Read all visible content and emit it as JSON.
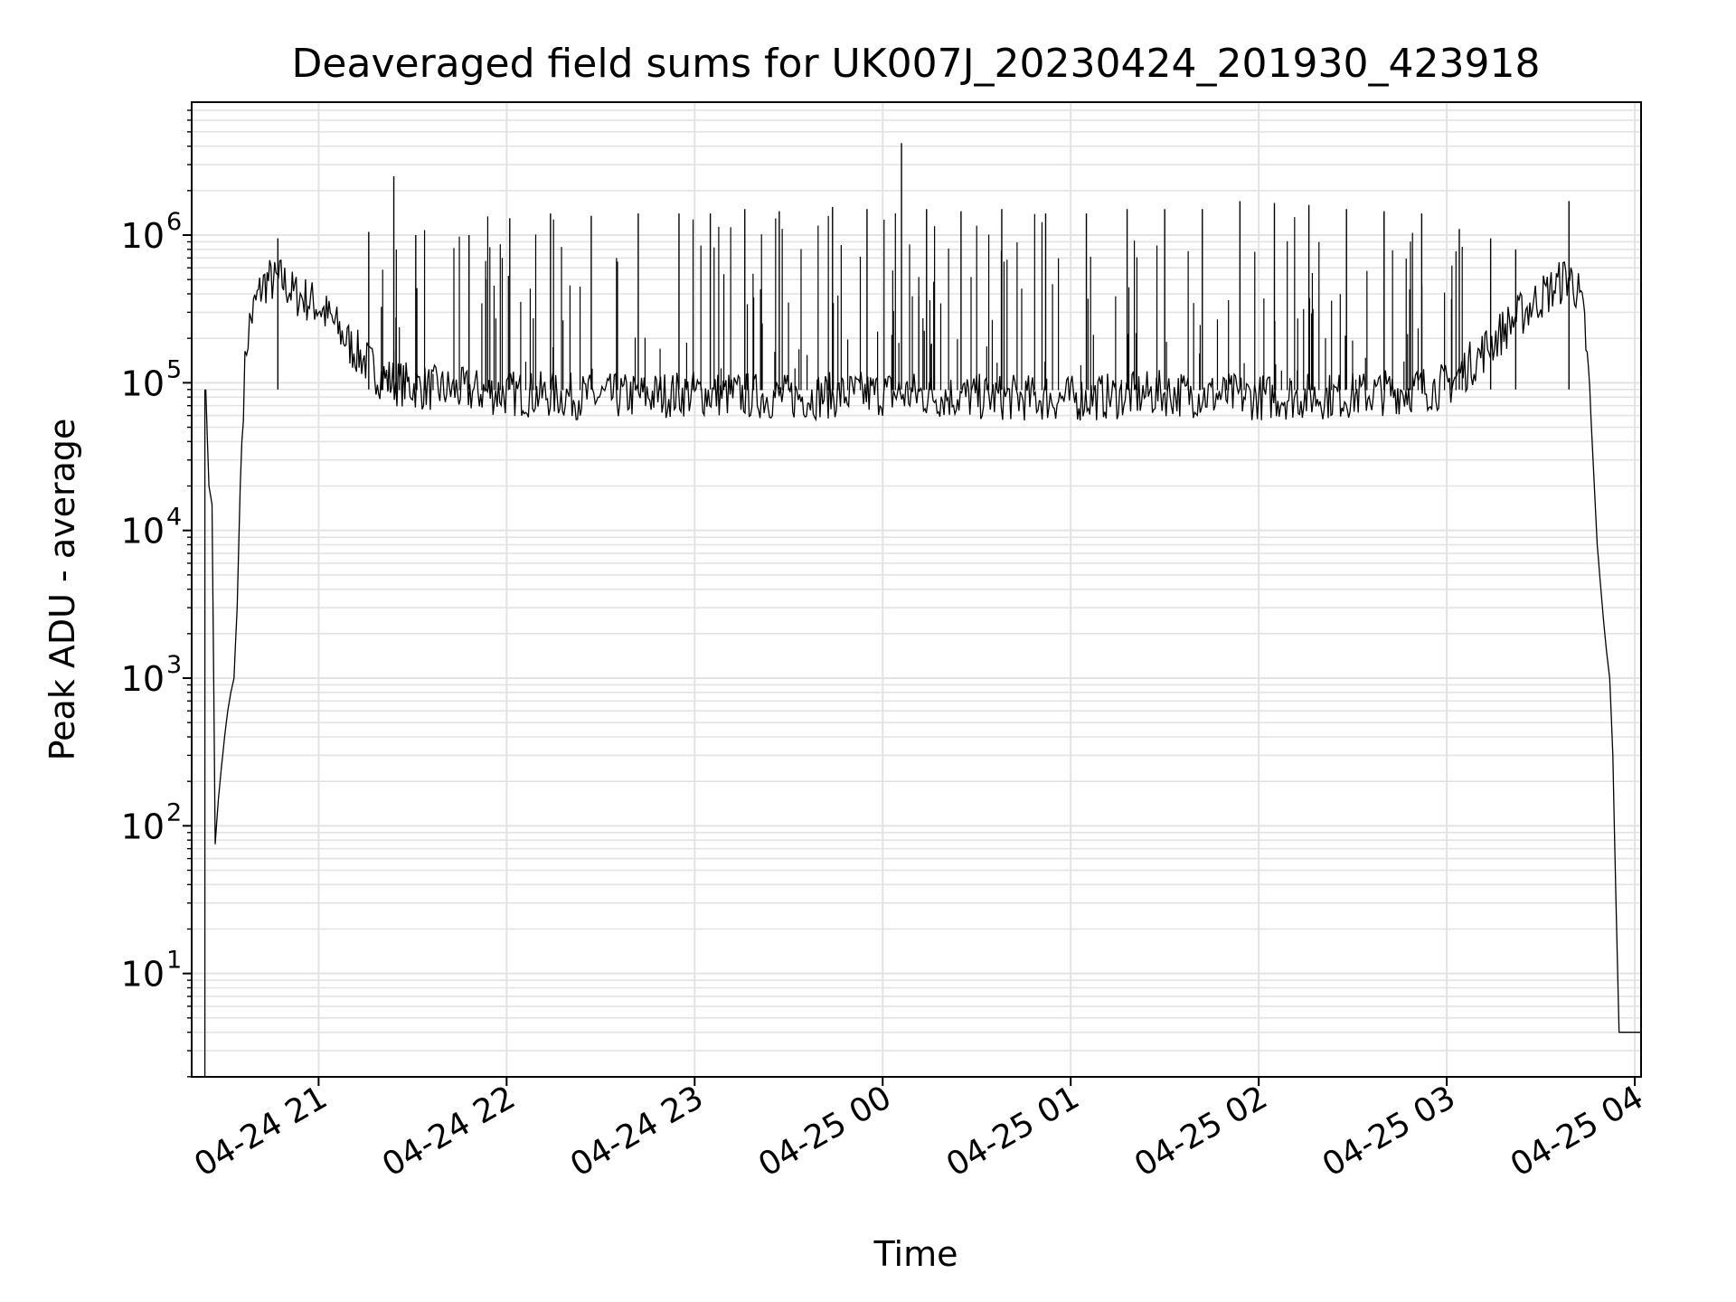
{
  "chart_data": {
    "type": "line",
    "title": "Deaveraged field sums for UK007J_20230424_201930_423918",
    "xlabel": "Time",
    "ylabel": "Peak ADU - average",
    "yscale": "log",
    "xlim": [
      "2023-04-24 20:19:30",
      "2023-04-25 04:02:00"
    ],
    "ylim_exponent": [
      0.3,
      6.9
    ],
    "y_tick_base": "10",
    "y_ticks": [
      {
        "exponent": "1",
        "value": 10
      },
      {
        "exponent": "2",
        "value": 100
      },
      {
        "exponent": "3",
        "value": 1000
      },
      {
        "exponent": "4",
        "value": 10000
      },
      {
        "exponent": "5",
        "value": 100000
      },
      {
        "exponent": "6",
        "value": 1000000
      }
    ],
    "x_ticks": [
      {
        "label": "04-24 21",
        "time": "2023-04-24 21:00"
      },
      {
        "label": "04-24 22",
        "time": "2023-04-24 22:00"
      },
      {
        "label": "04-24 23",
        "time": "2023-04-24 23:00"
      },
      {
        "label": "04-25 00",
        "time": "2023-04-25 00:00"
      },
      {
        "label": "04-25 01",
        "time": "2023-04-25 01:00"
      },
      {
        "label": "04-25 02",
        "time": "2023-04-25 02:00"
      },
      {
        "label": "04-25 03",
        "time": "2023-04-25 03:00"
      },
      {
        "label": "04-25 04",
        "time": "2023-04-25 04:00"
      }
    ],
    "grid": true,
    "series": [
      {
        "color": "#000000",
        "x": [
          "2023-04-24 20:24",
          "2023-04-24 20:25",
          "2023-04-24 20:26",
          "2023-04-24 20:27",
          "2023-04-24 20:28",
          "2023-04-24 20:29",
          "2023-04-24 20:30",
          "2023-04-24 20:31",
          "2023-04-24 20:32",
          "2023-04-24 20:33",
          "2023-04-24 20:34",
          "2023-04-24 20:35",
          "2023-04-24 20:36",
          "2023-04-24 20:37",
          "2023-04-24 20:38",
          "2023-04-24 20:40",
          "2023-04-24 20:42",
          "2023-04-24 20:44",
          "2023-04-24 20:46",
          "2023-04-24 20:48",
          "2023-04-24 20:50",
          "2023-04-24 20:52",
          "2023-04-24 20:55",
          "2023-04-24 21:00",
          "2023-04-24 21:05",
          "2023-04-24 21:10",
          "2023-04-24 21:15",
          "2023-04-24 21:20",
          "2023-04-24 21:25",
          "2023-04-24 21:30",
          "2023-04-24 21:40",
          "2023-04-24 22:00",
          "2023-04-24 22:30",
          "2023-04-24 23:00",
          "2023-04-24 23:30",
          "2023-04-25 00:00",
          "2023-04-25 00:30",
          "2023-04-25 01:00",
          "2023-04-25 01:30",
          "2023-04-25 02:00",
          "2023-04-25 02:30",
          "2023-04-25 03:00",
          "2023-04-25 03:10",
          "2023-04-25 03:20",
          "2023-04-25 03:30",
          "2023-04-25 03:35",
          "2023-04-25 03:38",
          "2023-04-25 03:40",
          "2023-04-25 03:42",
          "2023-04-25 03:44",
          "2023-04-25 03:46",
          "2023-04-25 03:48",
          "2023-04-25 03:50",
          "2023-04-25 03:51",
          "2023-04-25 03:52",
          "2023-04-25 03:53",
          "2023-04-25 03:54",
          "2023-04-25 03:55",
          "2023-04-25 04:02"
        ],
        "y": [
          90000,
          20000,
          15000,
          75,
          150,
          250,
          400,
          600,
          800,
          1000,
          3000,
          20000,
          80000,
          180000,
          250000,
          350000,
          450000,
          500000,
          480000,
          500000,
          450000,
          400000,
          380000,
          330000,
          250000,
          180000,
          140000,
          110000,
          100000,
          95000,
          90000,
          85000,
          80000,
          85000,
          80000,
          85000,
          80000,
          78000,
          85000,
          80000,
          82000,
          95000,
          150000,
          250000,
          380000,
          450000,
          520000,
          500000,
          400000,
          250000,
          60000,
          8000,
          2500,
          1500,
          1000,
          300,
          30,
          4,
          4
        ]
      }
    ],
    "spikes": [
      {
        "time": "2023-04-24 20:47",
        "y": 950000
      },
      {
        "time": "2023-04-24 21:24",
        "y": 2500000
      },
      {
        "time": "2023-04-24 21:16",
        "y": 1050000
      },
      {
        "time": "2023-04-24 21:31",
        "y": 1000000
      },
      {
        "time": "2023-04-24 21:48",
        "y": 1000000
      },
      {
        "time": "2023-04-24 22:01",
        "y": 1300000
      },
      {
        "time": "2023-04-24 22:14",
        "y": 1400000
      },
      {
        "time": "2023-04-24 22:27",
        "y": 1350000
      },
      {
        "time": "2023-04-24 22:42",
        "y": 1400000
      },
      {
        "time": "2023-04-24 22:55",
        "y": 1400000
      },
      {
        "time": "2023-04-24 23:05",
        "y": 1400000
      },
      {
        "time": "2023-04-24 23:16",
        "y": 1500000
      },
      {
        "time": "2023-04-24 23:27",
        "y": 1450000
      },
      {
        "time": "2023-04-24 23:44",
        "y": 1550000
      },
      {
        "time": "2023-04-24 23:55",
        "y": 1500000
      },
      {
        "time": "2023-04-25 00:06",
        "y": 4200000
      },
      {
        "time": "2023-04-25 00:14",
        "y": 1500000
      },
      {
        "time": "2023-04-25 00:25",
        "y": 1450000
      },
      {
        "time": "2023-04-25 00:38",
        "y": 1500000
      },
      {
        "time": "2023-04-25 00:52",
        "y": 1400000
      },
      {
        "time": "2023-04-25 01:05",
        "y": 1400000
      },
      {
        "time": "2023-04-25 01:18",
        "y": 1500000
      },
      {
        "time": "2023-04-25 01:30",
        "y": 1500000
      },
      {
        "time": "2023-04-25 01:42",
        "y": 1500000
      },
      {
        "time": "2023-04-25 01:54",
        "y": 1700000
      },
      {
        "time": "2023-04-25 02:05",
        "y": 1650000
      },
      {
        "time": "2023-04-25 02:16",
        "y": 1600000
      },
      {
        "time": "2023-04-25 02:28",
        "y": 1500000
      },
      {
        "time": "2023-04-25 02:40",
        "y": 1450000
      },
      {
        "time": "2023-04-25 02:52",
        "y": 1400000
      },
      {
        "time": "2023-04-25 03:04",
        "y": 1100000
      },
      {
        "time": "2023-04-25 03:14",
        "y": 950000
      },
      {
        "time": "2023-04-25 03:22",
        "y": 800000
      },
      {
        "time": "2023-04-25 03:39",
        "y": 1700000
      }
    ]
  }
}
